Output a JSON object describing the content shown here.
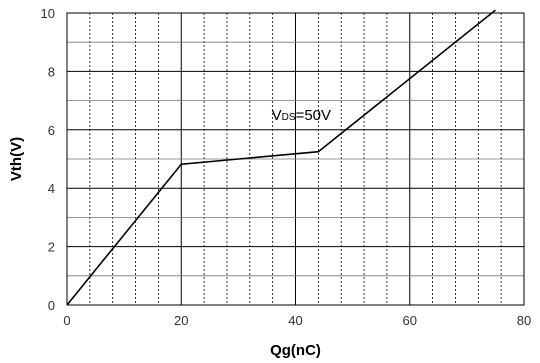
{
  "chart_data": {
    "type": "line",
    "title": "",
    "xlabel": "Qg(nC)",
    "ylabel": "Vth(V)",
    "xlim": [
      0,
      80
    ],
    "ylim": [
      0,
      10
    ],
    "x_ticks": [
      "0",
      "20",
      "40",
      "60",
      "80"
    ],
    "y_ticks": [
      "0",
      "2",
      "4",
      "6",
      "8",
      "10"
    ],
    "x_minor_step": 4,
    "y_minor_step": 1,
    "grid": true,
    "legend": "none",
    "line_color": "#000000",
    "grid_color": "#000000",
    "series": [
      {
        "x": [
          0,
          20,
          44,
          75
        ],
        "y": [
          0,
          4.82,
          5.25,
          10.1
        ]
      }
    ],
    "annotation": {
      "prefix": "V",
      "subscript": "DS",
      "suffix": "=50V",
      "at": [
        36,
        6.5
      ]
    }
  }
}
